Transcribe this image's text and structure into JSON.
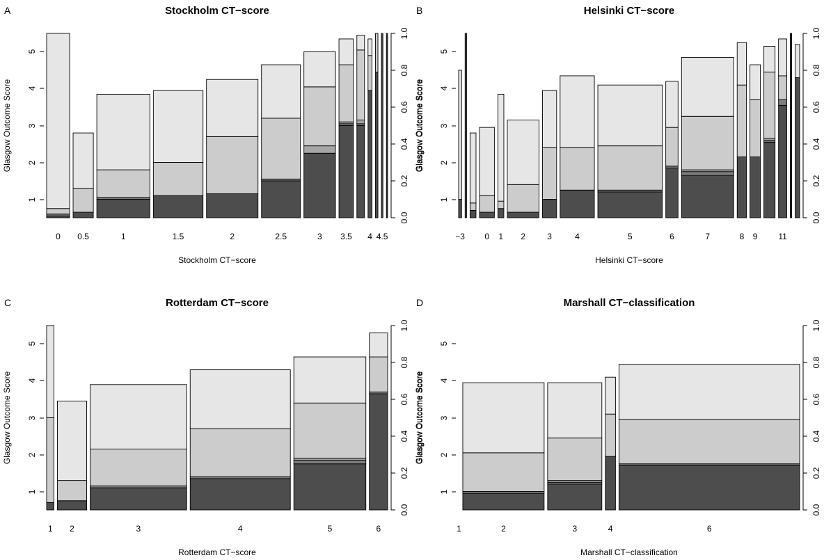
{
  "figure": {
    "left_axis_label": "Glasgow Outcome Score",
    "right_axis_label": "Glasgow Outcome Score",
    "gos_levels": [
      "1",
      "2",
      "3",
      "4",
      "5"
    ],
    "prop_ticks": [
      "0.0",
      "0.2",
      "0.4",
      "0.6",
      "0.8",
      "1.0"
    ],
    "segment_colors": {
      "1": "#4d4d4d",
      "2": "#7f7f7f",
      "3": "#a6a6a6",
      "4": "#cccccc",
      "5": "#e6e6e6"
    }
  },
  "chart_data": [
    {
      "type": "mosaic",
      "letter": "A",
      "title": "Stockholm CT−score",
      "xlabel": "Stockholm CT−score",
      "ylabel": "Glasgow Outcome Score",
      "ylabel_right": "Glasgow Outcome Score",
      "tick_labels": [
        "0",
        "0.5",
        "1",
        "1.5",
        "2",
        "2.5",
        "3",
        "3.5",
        "4",
        "4.5"
      ],
      "columns": [
        {
          "label": "0",
          "show": true,
          "width": 0.075,
          "cum": [
            0.01,
            0.02,
            0.02,
            0.05,
            1.0
          ]
        },
        {
          "label": "0.5",
          "show": true,
          "width": 0.066,
          "cum": [
            0.03,
            0.03,
            0.03,
            0.16,
            0.46
          ]
        },
        {
          "label": "1",
          "show": true,
          "width": 0.173,
          "cum": [
            0.1,
            0.11,
            0.11,
            0.26,
            0.67
          ]
        },
        {
          "label": "1.5",
          "show": true,
          "width": 0.162,
          "cum": [
            0.12,
            0.12,
            0.12,
            0.3,
            0.69
          ]
        },
        {
          "label": "2",
          "show": true,
          "width": 0.168,
          "cum": [
            0.13,
            0.13,
            0.13,
            0.44,
            0.75
          ]
        },
        {
          "label": "2.5",
          "show": true,
          "width": 0.127,
          "cum": [
            0.2,
            0.21,
            0.21,
            0.54,
            0.83
          ]
        },
        {
          "label": "3",
          "show": true,
          "width": 0.103,
          "cum": [
            0.35,
            0.35,
            0.39,
            0.71,
            0.9
          ]
        },
        {
          "label": "3.5",
          "show": true,
          "width": 0.047,
          "cum": [
            0.5,
            0.51,
            0.52,
            0.83,
            0.97
          ]
        },
        {
          "label": "",
          "show": false,
          "width": 0.025,
          "cum": [
            0.5,
            0.51,
            0.53,
            0.91,
            0.99
          ]
        },
        {
          "label": "4",
          "show": true,
          "width": 0.013,
          "cum": [
            0.69,
            0.69,
            0.69,
            0.88,
            0.97
          ]
        },
        {
          "label": "",
          "show": false,
          "width": 0.008,
          "cum": [
            0.79,
            0.79,
            0.79,
            1.0,
            1.0
          ]
        },
        {
          "label": "4.5",
          "show": true,
          "width": 0.005,
          "cum": [
            1.0,
            1.0,
            1.0,
            1.0,
            1.0
          ]
        },
        {
          "label": "",
          "show": false,
          "width": 0.004,
          "cum": [
            1.0,
            1.0,
            1.0,
            1.0,
            1.0
          ]
        }
      ]
    },
    {
      "type": "mosaic",
      "letter": "B",
      "title": "Helsinki CT−score",
      "xlabel": "Helsinki CT−score",
      "ylabel": "Glasgow Outcome Score",
      "ylabel_right": "Glasgow Outcome Score",
      "tick_labels": [
        "−3",
        "0",
        "1",
        "2",
        "3",
        "4",
        "5",
        "6",
        "7",
        "8",
        "9",
        "11"
      ],
      "columns": [
        {
          "label": "−3",
          "show": true,
          "width": 0.008,
          "cum": [
            0.1,
            0.1,
            0.1,
            0.1,
            0.8
          ]
        },
        {
          "label": "",
          "show": false,
          "width": 0.004,
          "cum": [
            1.0,
            1.0,
            1.0,
            1.0,
            1.0
          ]
        },
        {
          "label": "",
          "show": false,
          "width": 0.016,
          "cum": [
            0.04,
            0.04,
            0.04,
            0.08,
            0.46
          ]
        },
        {
          "label": "0",
          "show": true,
          "width": 0.04,
          "cum": [
            0.03,
            0.03,
            0.03,
            0.12,
            0.49
          ]
        },
        {
          "label": "1",
          "show": true,
          "width": 0.016,
          "cum": [
            0.05,
            0.05,
            0.05,
            0.09,
            0.67
          ]
        },
        {
          "label": "2",
          "show": true,
          "width": 0.085,
          "cum": [
            0.03,
            0.03,
            0.03,
            0.18,
            0.53
          ]
        },
        {
          "label": "3",
          "show": true,
          "width": 0.038,
          "cum": [
            0.1,
            0.1,
            0.1,
            0.38,
            0.69
          ]
        },
        {
          "label": "4",
          "show": true,
          "width": 0.092,
          "cum": [
            0.15,
            0.15,
            0.15,
            0.38,
            0.77
          ]
        },
        {
          "label": "5",
          "show": true,
          "width": 0.173,
          "cum": [
            0.14,
            0.15,
            0.15,
            0.39,
            0.72
          ]
        },
        {
          "label": "6",
          "show": true,
          "width": 0.033,
          "cum": [
            0.27,
            0.28,
            0.28,
            0.49,
            0.74
          ]
        },
        {
          "label": "7",
          "show": true,
          "width": 0.14,
          "cum": [
            0.23,
            0.25,
            0.26,
            0.55,
            0.87
          ]
        },
        {
          "label": "8",
          "show": true,
          "width": 0.025,
          "cum": [
            0.33,
            0.33,
            0.33,
            0.72,
            0.95
          ]
        },
        {
          "label": "9",
          "show": true,
          "width": 0.028,
          "cum": [
            0.33,
            0.33,
            0.33,
            0.64,
            0.83
          ]
        },
        {
          "label": "",
          "show": false,
          "width": 0.03,
          "cum": [
            0.41,
            0.42,
            0.43,
            0.79,
            0.93
          ]
        },
        {
          "label": "11",
          "show": true,
          "width": 0.022,
          "cum": [
            0.61,
            0.64,
            0.64,
            0.77,
            0.97
          ]
        },
        {
          "label": "",
          "show": false,
          "width": 0.004,
          "cum": [
            1.0,
            1.0,
            1.0,
            1.0,
            1.0
          ]
        },
        {
          "label": "",
          "show": false,
          "width": 0.012,
          "cum": [
            0.76,
            0.76,
            0.76,
            0.76,
            0.94
          ]
        }
      ]
    },
    {
      "type": "mosaic",
      "letter": "C",
      "title": "Rotterdam CT−score",
      "xlabel": "Rotterdam CT−score",
      "ylabel": "Glasgow Outcome Score",
      "ylabel_right": "Glasgow Outcome Score",
      "tick_labels": [
        "1",
        "2",
        "3",
        "4",
        "5",
        "6"
      ],
      "columns": [
        {
          "label": "1",
          "show": true,
          "width": 0.02,
          "cum": [
            0.04,
            0.04,
            0.04,
            0.5,
            1.0
          ]
        },
        {
          "label": "2",
          "show": true,
          "width": 0.08,
          "cum": [
            0.05,
            0.05,
            0.05,
            0.16,
            0.59
          ]
        },
        {
          "label": "3",
          "show": true,
          "width": 0.264,
          "cum": [
            0.12,
            0.13,
            0.13,
            0.33,
            0.68
          ]
        },
        {
          "label": "4",
          "show": true,
          "width": 0.274,
          "cum": [
            0.17,
            0.18,
            0.18,
            0.44,
            0.76
          ]
        },
        {
          "label": "5",
          "show": true,
          "width": 0.197,
          "cum": [
            0.25,
            0.27,
            0.28,
            0.58,
            0.83
          ]
        },
        {
          "label": "6",
          "show": true,
          "width": 0.05,
          "cum": [
            0.63,
            0.64,
            0.64,
            0.83,
            0.96
          ]
        }
      ]
    },
    {
      "type": "mosaic",
      "letter": "D",
      "title": "Marshall CT−classification",
      "xlabel": "Marshall CT−classification",
      "ylabel": "Glasgow Outcome Score",
      "ylabel_right": "Glasgow Outcome Score",
      "tick_labels": [
        "1",
        "2",
        "3",
        "4",
        "6"
      ],
      "columns": [
        {
          "label": "1",
          "show": true,
          "width": 0.002,
          "cum": [
            0.0,
            0.0,
            0.0,
            0.0,
            0.0
          ]
        },
        {
          "label": "2",
          "show": true,
          "width": 0.24,
          "cum": [
            0.09,
            0.1,
            0.1,
            0.31,
            0.69
          ]
        },
        {
          "label": "3",
          "show": true,
          "width": 0.16,
          "cum": [
            0.14,
            0.15,
            0.16,
            0.39,
            0.69
          ]
        },
        {
          "label": "4",
          "show": true,
          "width": 0.03,
          "cum": [
            0.29,
            0.29,
            0.29,
            0.52,
            0.72
          ]
        },
        {
          "label": "6",
          "show": true,
          "width": 0.533,
          "cum": [
            0.24,
            0.25,
            0.25,
            0.49,
            0.79
          ]
        }
      ]
    }
  ]
}
